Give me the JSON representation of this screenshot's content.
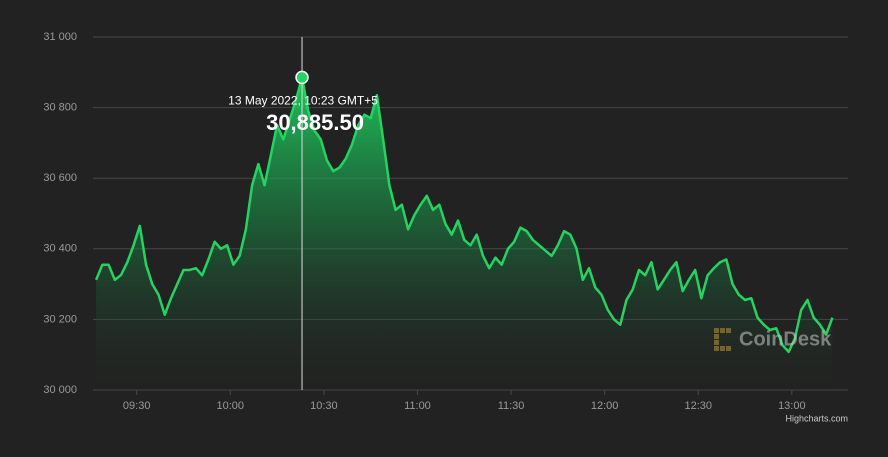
{
  "chart_data": {
    "type": "area",
    "x": [
      "09:17",
      "09:19",
      "09:21",
      "09:23",
      "09:25",
      "09:27",
      "09:29",
      "09:31",
      "09:33",
      "09:35",
      "09:37",
      "09:39",
      "09:41",
      "09:43",
      "09:45",
      "09:47",
      "09:49",
      "09:51",
      "09:53",
      "09:55",
      "09:57",
      "09:59",
      "10:01",
      "10:03",
      "10:05",
      "10:07",
      "10:09",
      "10:11",
      "10:13",
      "10:15",
      "10:17",
      "10:19",
      "10:21",
      "10:23",
      "10:25",
      "10:27",
      "10:29",
      "10:31",
      "10:33",
      "10:35",
      "10:37",
      "10:39",
      "10:41",
      "10:43",
      "10:45",
      "10:47",
      "10:49",
      "10:51",
      "10:53",
      "10:55",
      "10:57",
      "10:59",
      "11:01",
      "11:03",
      "11:05",
      "11:07",
      "11:09",
      "11:11",
      "11:13",
      "11:15",
      "11:17",
      "11:19",
      "11:21",
      "11:23",
      "11:25",
      "11:27",
      "11:29",
      "11:31",
      "11:33",
      "11:35",
      "11:37",
      "11:39",
      "11:41",
      "11:43",
      "11:45",
      "11:47",
      "11:49",
      "11:51",
      "11:53",
      "11:55",
      "11:57",
      "11:59",
      "12:01",
      "12:03",
      "12:05",
      "12:07",
      "12:09",
      "12:11",
      "12:13",
      "12:15",
      "12:17",
      "12:19",
      "12:21",
      "12:23",
      "12:25",
      "12:27",
      "12:29",
      "12:31",
      "12:33",
      "12:35",
      "12:37",
      "12:39",
      "12:41",
      "12:43",
      "12:45",
      "12:47",
      "12:49",
      "12:51",
      "12:53",
      "12:55",
      "12:57",
      "12:59",
      "13:01",
      "13:03",
      "13:05",
      "13:07",
      "13:09",
      "13:11",
      "13:13"
    ],
    "series": [
      {
        "color": "#1ed760",
        "values": [
          30312,
          30355,
          30355,
          30312,
          30326,
          30362,
          30410,
          30465,
          30355,
          30300,
          30270,
          30213,
          30260,
          30300,
          30340,
          30340,
          30345,
          30325,
          30370,
          30420,
          30400,
          30410,
          30355,
          30380,
          30455,
          30580,
          30640,
          30580,
          30665,
          30750,
          30710,
          30765,
          30820,
          30885.5,
          30790,
          30735,
          30710,
          30650,
          30620,
          30630,
          30655,
          30695,
          30750,
          30780,
          30770,
          30835,
          30710,
          30580,
          30510,
          30525,
          30455,
          30495,
          30525,
          30550,
          30510,
          30525,
          30470,
          30440,
          30480,
          30425,
          30410,
          30440,
          30380,
          30345,
          30375,
          30355,
          30400,
          30420,
          30460,
          30450,
          30425,
          30410,
          30395,
          30380,
          30410,
          30450,
          30440,
          30400,
          30312,
          30345,
          30290,
          30270,
          30227,
          30200,
          30185,
          30255,
          30285,
          30340,
          30325,
          30362,
          30285,
          30312,
          30340,
          30362,
          30280,
          30312,
          30340,
          30260,
          30325,
          30345,
          30362,
          30370,
          30300,
          30270,
          30255,
          30260,
          30205,
          30185,
          30170,
          30175,
          30127,
          30108,
          30147,
          30227,
          30255,
          30205,
          30185,
          30157,
          30205
        ]
      }
    ],
    "xlim": [
      "09:16",
      "13:18"
    ],
    "xticks": [
      "09:30",
      "10:00",
      "10:30",
      "11:00",
      "11:30",
      "12:00",
      "12:30",
      "13:00"
    ],
    "ylim": [
      30000,
      31000
    ],
    "yticks": [
      {
        "value": 30000,
        "label": "30 000"
      },
      {
        "value": 30200,
        "label": "30 200"
      },
      {
        "value": 30400,
        "label": "30 400"
      },
      {
        "value": 30600,
        "label": "30 600"
      },
      {
        "value": 30800,
        "label": "30 800"
      },
      {
        "value": 31000,
        "label": "31 000"
      }
    ],
    "grid": true,
    "tooltip": {
      "x": "10:23",
      "title": "13 May 2022, 10:23 GMT+5",
      "value_label": "30,885.50"
    },
    "watermark": "CoinDesk",
    "credits": "Highcharts.com"
  }
}
